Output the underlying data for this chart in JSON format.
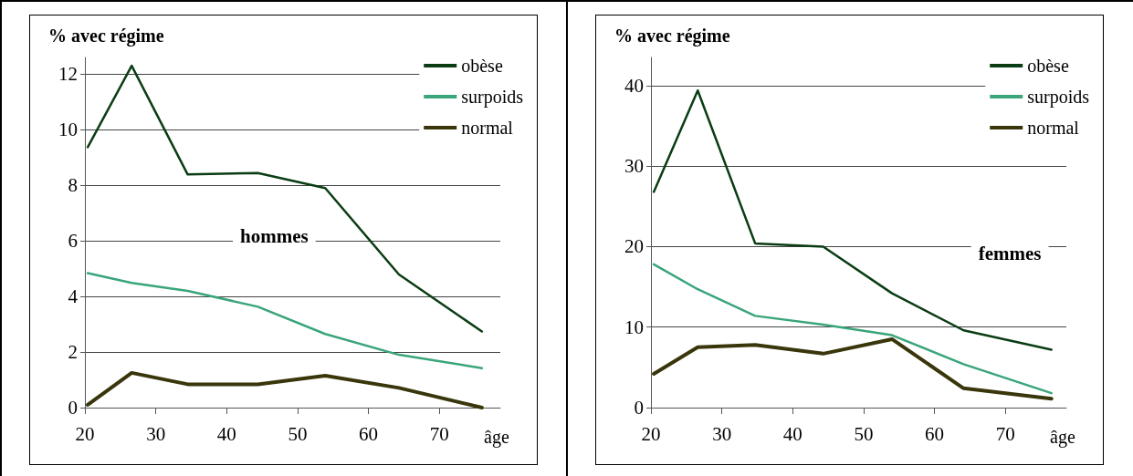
{
  "chart_data": [
    {
      "type": "line",
      "ylabel": "% avec régime",
      "xlabel": "âge",
      "annotations": [
        "hommes"
      ],
      "xlim": [
        20,
        78.6
      ],
      "xticks": [
        20,
        30,
        40,
        50,
        60,
        70
      ],
      "ylim": [
        0,
        12.6
      ],
      "yticks": [
        0,
        2,
        4,
        6,
        8,
        10,
        12
      ],
      "grid": "y",
      "legend": "top right",
      "marker": "none",
      "line_style": "solid",
      "x": [
        20.4,
        26.6,
        34.5,
        44.4,
        53.9,
        64.3,
        76.0
      ],
      "series": [
        {
          "name": "obèse",
          "color": "#0b3d14",
          "values": [
            9.37,
            12.3,
            8.39,
            8.44,
            7.9,
            4.79,
            2.74
          ]
        },
        {
          "name": "surpoids",
          "color": "#3aa57a",
          "values": [
            4.84,
            4.49,
            4.2,
            3.63,
            2.65,
            1.9,
            1.42
          ]
        },
        {
          "name": "normal",
          "color": "#39360c",
          "values": [
            0.1,
            1.25,
            0.84,
            0.84,
            1.15,
            0.71,
            0
          ]
        }
      ]
    },
    {
      "type": "line",
      "ylabel": "% avec régime",
      "xlabel": "âge",
      "annotations": [
        "femmes"
      ],
      "xlim": [
        20,
        78.6
      ],
      "xticks": [
        20,
        30,
        40,
        50,
        60,
        70
      ],
      "ylim": [
        0,
        43.5
      ],
      "yticks": [
        0,
        10,
        20,
        30,
        40
      ],
      "grid": "y",
      "legend": "top right",
      "marker": "none",
      "line_style": "solid",
      "x": [
        20.4,
        26.6,
        34.7,
        44.3,
        54.0,
        64.1,
        76.5
      ],
      "series": [
        {
          "name": "obèse",
          "color": "#0b3d14",
          "values": [
            26.8,
            39.4,
            20.4,
            20.0,
            14.2,
            9.6,
            7.2
          ]
        },
        {
          "name": "surpoids",
          "color": "#3aa57a",
          "values": [
            17.8,
            14.7,
            11.4,
            10.3,
            9.0,
            5.4,
            1.8
          ]
        },
        {
          "name": "normal",
          "color": "#39360c",
          "values": [
            4.2,
            7.5,
            7.8,
            6.7,
            8.5,
            2.4,
            1.1
          ]
        }
      ]
    }
  ]
}
